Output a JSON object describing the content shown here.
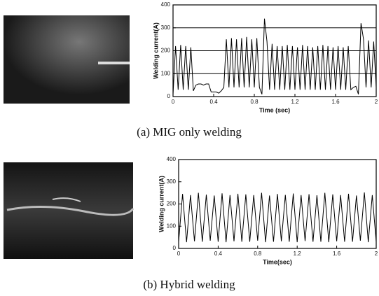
{
  "chart_data": [
    {
      "type": "line",
      "caption": "(a) MIG only welding",
      "ylabel": "Welding current(A)",
      "xlabel": "Time (sec)",
      "x": [
        0,
        0.025,
        0.05,
        0.075,
        0.1,
        0.125,
        0.15,
        0.175,
        0.2,
        0.225,
        0.25,
        0.275,
        0.3,
        0.325,
        0.35,
        0.375,
        0.4,
        0.425,
        0.45,
        0.475,
        0.5,
        0.525,
        0.55,
        0.575,
        0.6,
        0.625,
        0.65,
        0.675,
        0.7,
        0.725,
        0.75,
        0.775,
        0.8,
        0.825,
        0.85,
        0.875,
        0.9,
        0.925,
        0.95,
        0.975,
        1.0,
        1.025,
        1.05,
        1.075,
        1.1,
        1.125,
        1.15,
        1.175,
        1.2,
        1.225,
        1.25,
        1.275,
        1.3,
        1.325,
        1.35,
        1.375,
        1.4,
        1.425,
        1.45,
        1.475,
        1.5,
        1.525,
        1.55,
        1.575,
        1.6,
        1.625,
        1.65,
        1.675,
        1.7,
        1.725,
        1.75,
        1.775,
        1.8,
        1.825,
        1.85,
        1.875,
        1.9,
        1.925,
        1.95,
        1.975,
        2.0
      ],
      "values": [
        10,
        220,
        30,
        225,
        30,
        220,
        30,
        215,
        25,
        50,
        55,
        55,
        50,
        55,
        55,
        20,
        20,
        20,
        15,
        25,
        40,
        250,
        40,
        255,
        40,
        250,
        40,
        255,
        40,
        260,
        40,
        250,
        40,
        255,
        40,
        10,
        340,
        240,
        30,
        230,
        30,
        220,
        30,
        220,
        30,
        225,
        30,
        220,
        30,
        215,
        30,
        225,
        30,
        220,
        30,
        215,
        30,
        220,
        30,
        225,
        30,
        220,
        30,
        215,
        30,
        220,
        30,
        215,
        30,
        220,
        30,
        40,
        45,
        10,
        320,
        250,
        40,
        245,
        40,
        240,
        40
      ],
      "color": "#000000",
      "xlim": [
        0,
        2
      ],
      "ylim": [
        0,
        400
      ],
      "xticks": [
        0,
        0.4,
        0.8,
        1.2,
        1.6,
        2
      ],
      "yticks": [
        0,
        100,
        200,
        300,
        400
      ],
      "grid": true
    },
    {
      "type": "line",
      "caption": "(b) Hybrid welding",
      "ylabel": "Welding current(A)",
      "xlabel": "Time(sec)",
      "x": [
        0,
        0.04,
        0.08,
        0.12,
        0.16,
        0.2,
        0.24,
        0.28,
        0.32,
        0.36,
        0.4,
        0.44,
        0.48,
        0.52,
        0.56,
        0.6,
        0.64,
        0.68,
        0.72,
        0.76,
        0.8,
        0.84,
        0.88,
        0.92,
        0.96,
        1.0,
        1.04,
        1.08,
        1.12,
        1.16,
        1.2,
        1.24,
        1.28,
        1.32,
        1.36,
        1.4,
        1.44,
        1.48,
        1.52,
        1.56,
        1.6,
        1.64,
        1.68,
        1.72,
        1.76,
        1.8,
        1.84,
        1.88,
        1.92,
        1.96,
        2.0
      ],
      "values": [
        30,
        245,
        28,
        240,
        32,
        250,
        30,
        242,
        35,
        238,
        30,
        248,
        28,
        240,
        32,
        246,
        30,
        243,
        30,
        240,
        35,
        250,
        28,
        238,
        30,
        245,
        32,
        241,
        30,
        247,
        28,
        240,
        33,
        244,
        30,
        239,
        30,
        250,
        28,
        243,
        32,
        240,
        30,
        246,
        30,
        238,
        35,
        252,
        28,
        240,
        30
      ],
      "color": "#000000",
      "xlim": [
        0,
        2
      ],
      "ylim": [
        0,
        400
      ],
      "xticks": [
        0,
        0.4,
        0.8,
        1.2,
        1.6,
        2
      ],
      "yticks": [
        0,
        100,
        200,
        300,
        400
      ],
      "grid": false
    }
  ]
}
